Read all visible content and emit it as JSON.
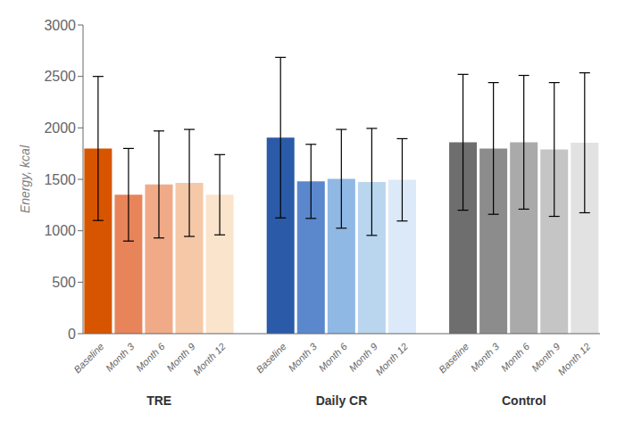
{
  "chart_data": {
    "type": "bar",
    "ylabel": "Energy, kcal",
    "ylim": [
      0,
      3000
    ],
    "yticks": [
      0,
      500,
      1000,
      1500,
      2000,
      2500,
      3000
    ],
    "grid": false,
    "groups": [
      {
        "name": "TRE",
        "categories": [
          "Baseline",
          "Month 3",
          "Month 6",
          "Month 9",
          "Month 12"
        ],
        "values": [
          1800,
          1350,
          1450,
          1465,
          1350
        ],
        "errors": [
          700,
          450,
          520,
          520,
          390
        ],
        "colors": [
          "#D85500",
          "#E8845A",
          "#F0AA88",
          "#F5C8A8",
          "#FAE4CC"
        ]
      },
      {
        "name": "Daily CR",
        "categories": [
          "Baseline",
          "Month 3",
          "Month 6",
          "Month 9",
          "Month 12"
        ],
        "values": [
          1905,
          1480,
          1505,
          1475,
          1495
        ],
        "errors": [
          780,
          360,
          480,
          520,
          400
        ],
        "colors": [
          "#2B5BA8",
          "#5B88CC",
          "#90B8E4",
          "#BAD5EE",
          "#DCE9F8"
        ]
      },
      {
        "name": "Control",
        "categories": [
          "Baseline",
          "Month 3",
          "Month 6",
          "Month 9",
          "Month 12"
        ],
        "values": [
          1860,
          1800,
          1860,
          1790,
          1855
        ],
        "errors": [
          660,
          640,
          650,
          650,
          680
        ],
        "colors": [
          "#6E6E6E",
          "#8C8C8C",
          "#AAAAAA",
          "#C5C5C5",
          "#E2E2E2"
        ]
      }
    ]
  }
}
